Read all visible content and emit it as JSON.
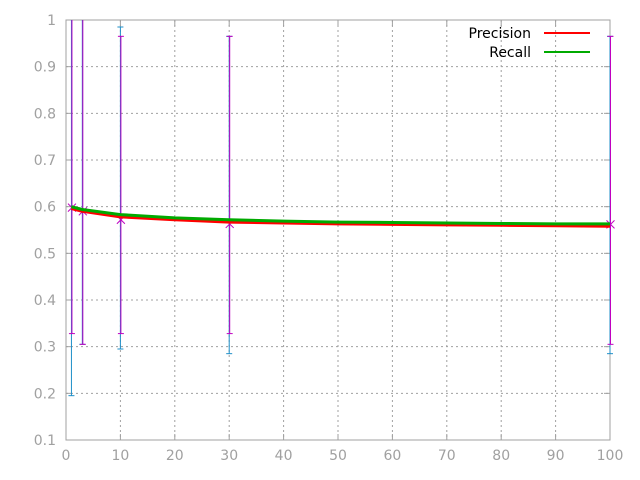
{
  "chart_data": {
    "type": "line",
    "title": "",
    "xlabel": "",
    "ylabel": "",
    "xlim": [
      0,
      100
    ],
    "ylim": [
      0.1,
      1
    ],
    "xticks": [
      0,
      10,
      20,
      30,
      40,
      50,
      60,
      70,
      80,
      90,
      100
    ],
    "yticks": [
      0.1,
      0.2,
      0.3,
      0.4,
      0.5,
      0.6,
      0.7,
      0.8,
      0.9,
      1
    ],
    "xtick_labels": [
      "0",
      "10",
      "20",
      "30",
      "40",
      "50",
      "60",
      "70",
      "80",
      "90",
      "100"
    ],
    "ytick_labels": [
      "0.1",
      "0.2",
      "0.3",
      "0.4",
      "0.5",
      "0.6",
      "0.7",
      "0.8",
      "0.9",
      "1"
    ],
    "grid": true,
    "legend_position": "top-right",
    "series": [
      {
        "name": "Precision",
        "color": "#ff0000",
        "x": [
          1,
          3,
          10,
          20,
          30,
          40,
          50,
          60,
          70,
          80,
          90,
          100
        ],
        "y": [
          0.596,
          0.59,
          0.578,
          0.572,
          0.567,
          0.565,
          0.563,
          0.562,
          0.561,
          0.56,
          0.559,
          0.558
        ]
      },
      {
        "name": "Recall",
        "color": "#00aa00",
        "x": [
          1,
          3,
          10,
          20,
          30,
          40,
          50,
          60,
          70,
          80,
          90,
          100
        ],
        "y": [
          0.6,
          0.594,
          0.583,
          0.576,
          0.572,
          0.569,
          0.567,
          0.566,
          0.565,
          0.564,
          0.563,
          0.563
        ]
      }
    ],
    "error_bars": [
      {
        "color": "#1f8fc8",
        "x": [
          1,
          3,
          10,
          30,
          100
        ],
        "low": [
          0.195,
          0.305,
          0.295,
          0.285,
          0.285
        ],
        "high": [
          1,
          1,
          0.985,
          0.965,
          0.965
        ]
      },
      {
        "color": "#c000c0",
        "x": [
          1,
          3,
          10,
          30,
          100
        ],
        "low": [
          0.328,
          0.305,
          0.328,
          0.328,
          0.305
        ],
        "high": [
          1,
          1,
          0.965,
          0.965,
          0.965
        ],
        "center": [
          0.598,
          0.59,
          0.572,
          0.563,
          0.562
        ]
      }
    ]
  }
}
